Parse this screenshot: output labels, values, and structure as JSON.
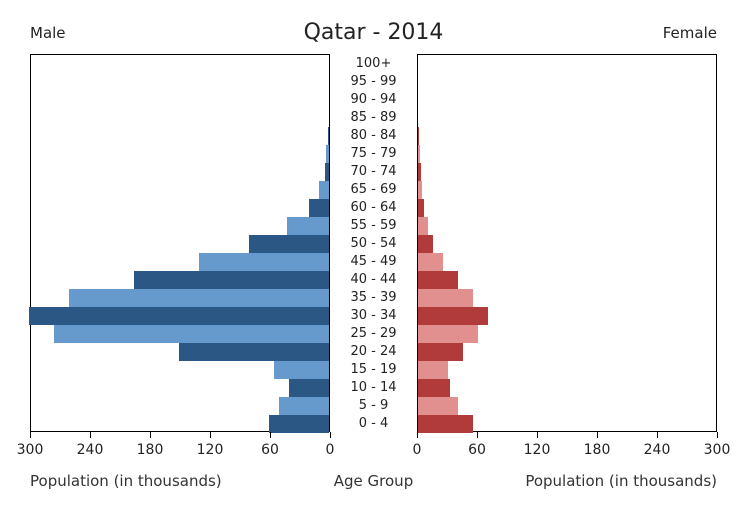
{
  "chart": {
    "type": "population-pyramid",
    "title": "Qatar - 2014",
    "title_fontsize": 22,
    "left_label": "Male",
    "right_label": "Female",
    "side_label_fontsize": 15,
    "x_axis_label_left": "Population (in thousands)",
    "x_axis_label_center": "Age Group",
    "x_axis_label_right": "Population (in thousands)",
    "caption_fontsize": 15,
    "age_label_fontsize": 13,
    "tick_label_fontsize": 14,
    "xlim": [
      0,
      300
    ],
    "xtick_step": 60,
    "xticks": [
      0,
      60,
      120,
      180,
      240,
      300
    ],
    "background_color": "#ffffff",
    "border_color": "#000000",
    "axis_label_color": "#333333",
    "male_colors": [
      "#2a5783",
      "#6699cc"
    ],
    "female_colors": [
      "#b13b3b",
      "#e28f8f"
    ],
    "age_groups": [
      "100+",
      "95 - 99",
      "90 - 94",
      "85 - 89",
      "80 - 84",
      "75 - 79",
      "70 - 74",
      "65 - 69",
      "60 - 64",
      "55 - 59",
      "50 - 54",
      "45 - 49",
      "40 - 44",
      "35 - 39",
      "30 - 34",
      "25 - 29",
      "20 - 24",
      "15 - 19",
      "10 - 14",
      "5 - 9",
      "0 - 4"
    ],
    "male_values": [
      0,
      0,
      0,
      0,
      1,
      3,
      4,
      10,
      20,
      42,
      80,
      130,
      195,
      260,
      300,
      275,
      150,
      55,
      40,
      50,
      60
    ],
    "female_values": [
      0,
      0,
      0,
      0,
      1,
      2,
      3,
      4,
      6,
      10,
      15,
      25,
      40,
      55,
      70,
      60,
      45,
      30,
      32,
      40,
      55
    ]
  }
}
